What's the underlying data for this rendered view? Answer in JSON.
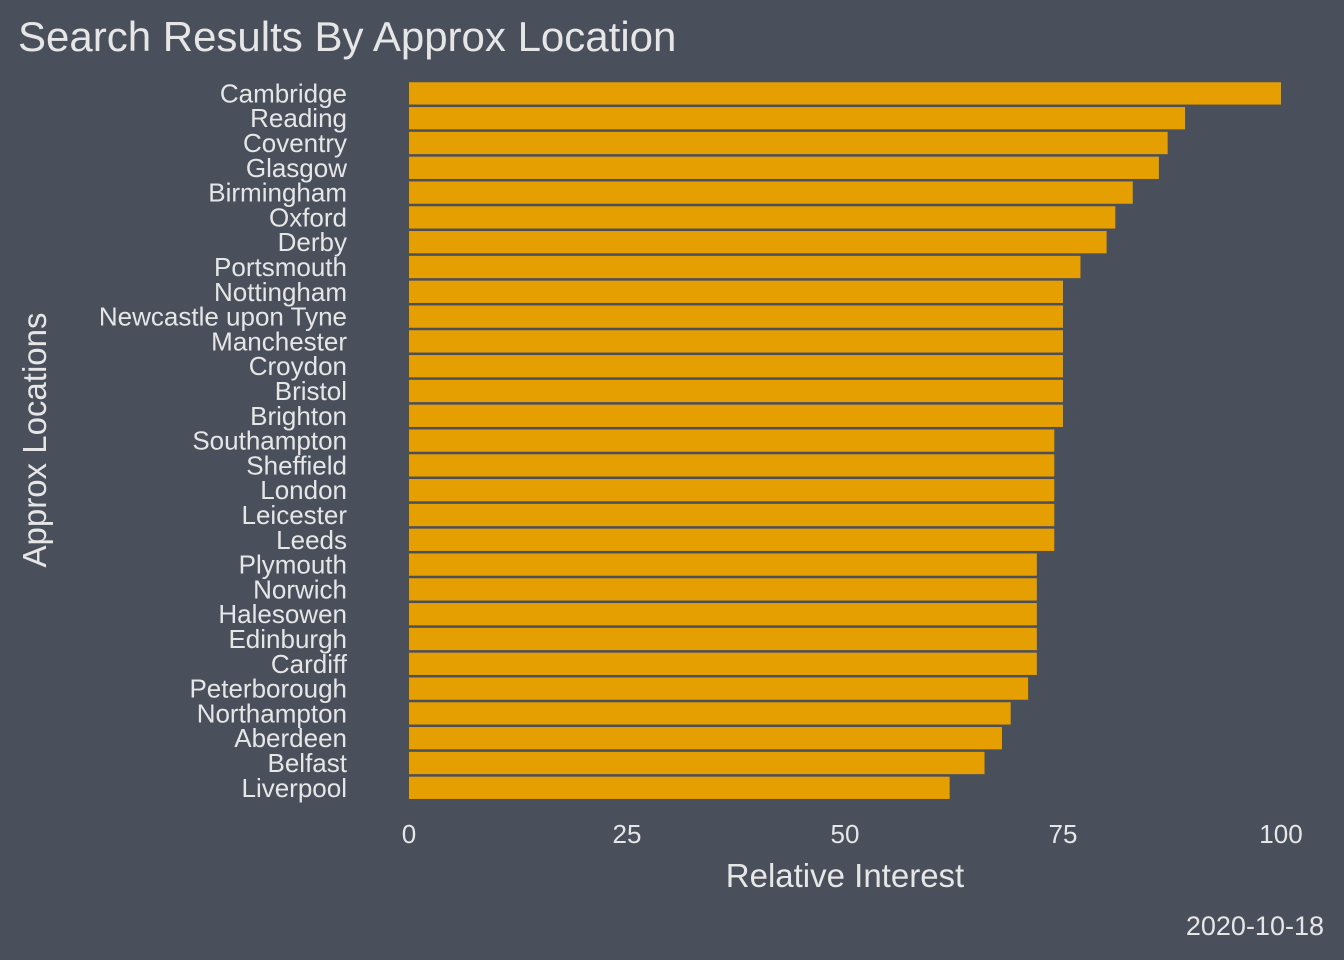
{
  "chart_data": {
    "type": "bar",
    "orientation": "horizontal",
    "title": "Search Results By Approx Location",
    "xlabel": "Relative Interest",
    "ylabel": "Approx Locations",
    "caption": "2020-10-18",
    "xlim": [
      0,
      100
    ],
    "xticks": [
      "0",
      "25",
      "50",
      "75",
      "100"
    ],
    "grid": false,
    "legend": "none",
    "bar_color": "#e69f00",
    "background_color": "#4a4f5c",
    "text_color": "#e6e6e6",
    "categories": [
      "Cambridge",
      "Reading",
      "Coventry",
      "Glasgow",
      "Birmingham",
      "Oxford",
      "Derby",
      "Portsmouth",
      "Nottingham",
      "Newcastle upon Tyne",
      "Manchester",
      "Croydon",
      "Bristol",
      "Brighton",
      "Southampton",
      "Sheffield",
      "London",
      "Leicester",
      "Leeds",
      "Plymouth",
      "Norwich",
      "Halesowen",
      "Edinburgh",
      "Cardiff",
      "Peterborough",
      "Northampton",
      "Aberdeen",
      "Belfast",
      "Liverpool"
    ],
    "values": [
      100,
      89,
      87,
      86,
      83,
      81,
      80,
      77,
      75,
      75,
      75,
      75,
      75,
      75,
      74,
      74,
      74,
      74,
      74,
      72,
      72,
      72,
      72,
      72,
      71,
      69,
      68,
      66,
      62
    ]
  }
}
